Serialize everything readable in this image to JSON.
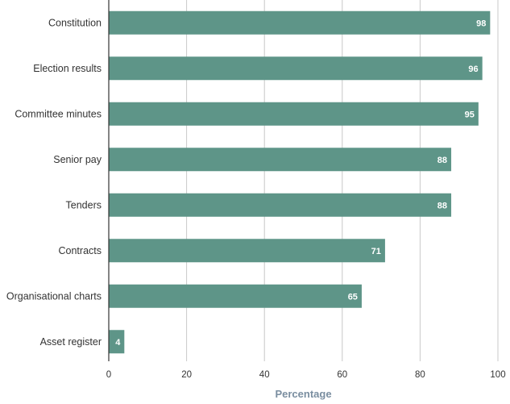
{
  "chart_data": {
    "type": "bar",
    "orientation": "horizontal",
    "categories": [
      "Constitution",
      "Election results",
      "Committee minutes",
      "Senior pay",
      "Tenders",
      "Contracts",
      "Organisational charts",
      "Asset register"
    ],
    "values": [
      98,
      96,
      95,
      88,
      88,
      71,
      65,
      4
    ],
    "xlabel": "Percentage",
    "ylabel": "",
    "xlim": [
      0,
      100
    ],
    "xticks": [
      0,
      20,
      40,
      60,
      80,
      100
    ],
    "grid": true,
    "data_labels": true,
    "bar_color": "#5e9588"
  }
}
